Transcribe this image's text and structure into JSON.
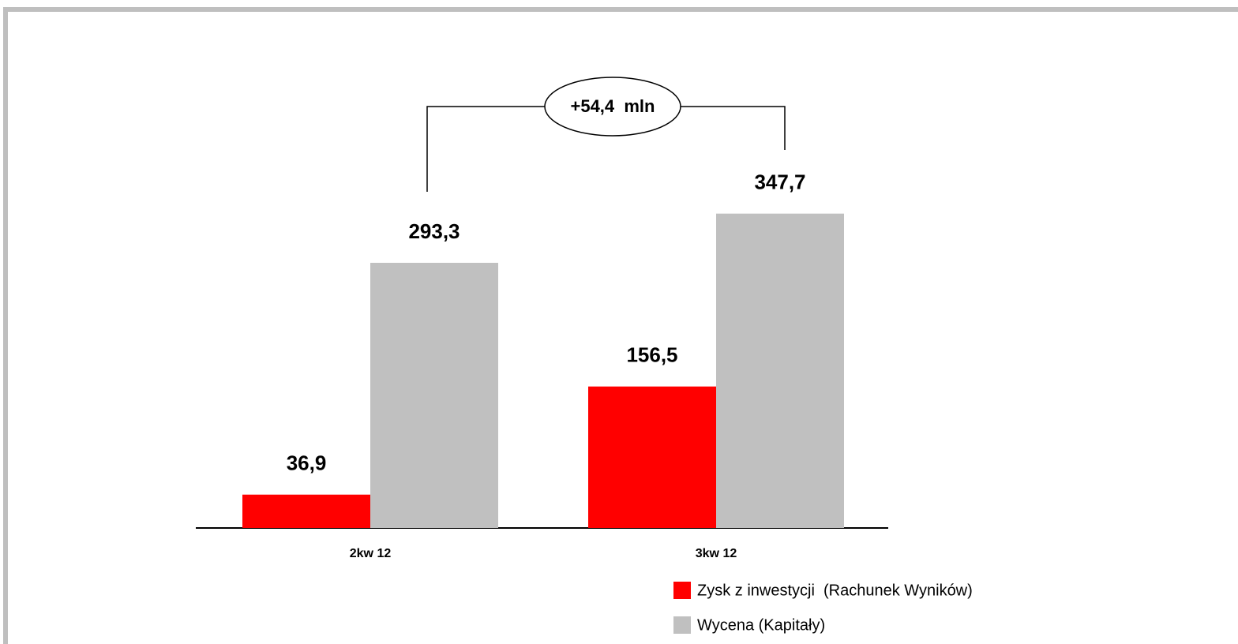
{
  "chart_data": {
    "type": "bar",
    "categories": [
      "2kw 12",
      "3kw 12"
    ],
    "series": [
      {
        "name": "Zysk z inwestycji  (Rachunek Wyników)",
        "color": "#ff0000",
        "values": [
          36.9,
          156.5
        ],
        "value_labels": [
          "36,9",
          "156,5"
        ]
      },
      {
        "name": "Wycena (Kapitały)",
        "color": "#c0c0c0",
        "values": [
          293.3,
          347.7
        ],
        "value_labels": [
          "293,3",
          "347,7"
        ]
      }
    ],
    "annotation": "+54,4  mln"
  }
}
